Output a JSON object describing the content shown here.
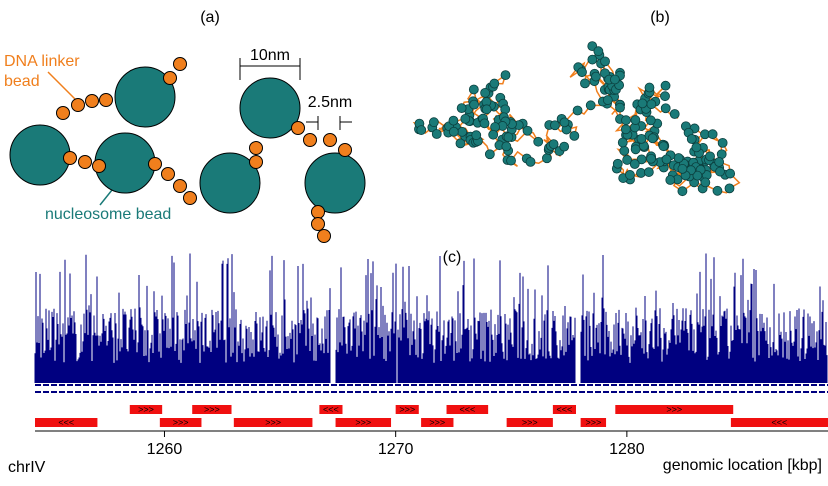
{
  "panels": {
    "a": "(a)",
    "b": "(b)",
    "c": "(c)"
  },
  "annotations": {
    "linker": "DNA linker",
    "linker2": "bead",
    "nucleosome": "nucleosome bead",
    "size_big": "10nm",
    "size_small": "2.5nm"
  },
  "track": {
    "chromosome": "chrIV",
    "xlabel": "genomic location [kbp]",
    "xlim": [
      1254.4,
      1288.7
    ],
    "xticks": [
      1260,
      1270,
      1280
    ],
    "genes": [
      {
        "row": 1,
        "start": 1258.5,
        "end": 1259.9,
        "label": ">>>"
      },
      {
        "row": 1,
        "start": 1261.2,
        "end": 1262.9,
        "label": ">>>"
      },
      {
        "row": 1,
        "start": 1266.7,
        "end": 1267.7,
        "label": "<<<"
      },
      {
        "row": 1,
        "start": 1270.0,
        "end": 1271.0,
        "label": ">>>"
      },
      {
        "row": 1,
        "start": 1272.2,
        "end": 1274.0,
        "label": "<<<"
      },
      {
        "row": 1,
        "start": 1276.8,
        "end": 1277.8,
        "label": "<<<"
      },
      {
        "row": 1,
        "start": 1279.5,
        "end": 1284.6,
        "label": ">>>"
      },
      {
        "row": 2,
        "start": 1254.4,
        "end": 1257.1,
        "label": "<<<"
      },
      {
        "row": 2,
        "start": 1259.8,
        "end": 1261.6,
        "label": ">>>"
      },
      {
        "row": 2,
        "start": 1263.0,
        "end": 1266.4,
        "label": ">>>"
      },
      {
        "row": 2,
        "start": 1267.4,
        "end": 1269.8,
        "label": ">>>"
      },
      {
        "row": 2,
        "start": 1271.1,
        "end": 1272.5,
        "label": ">>>"
      },
      {
        "row": 2,
        "start": 1274.8,
        "end": 1276.8,
        "label": ">>>"
      },
      {
        "row": 2,
        "start": 1278.0,
        "end": 1279.1,
        "label": ">>>"
      },
      {
        "row": 2,
        "start": 1284.5,
        "end": 1288.7,
        "label": "<<<"
      }
    ]
  }
}
